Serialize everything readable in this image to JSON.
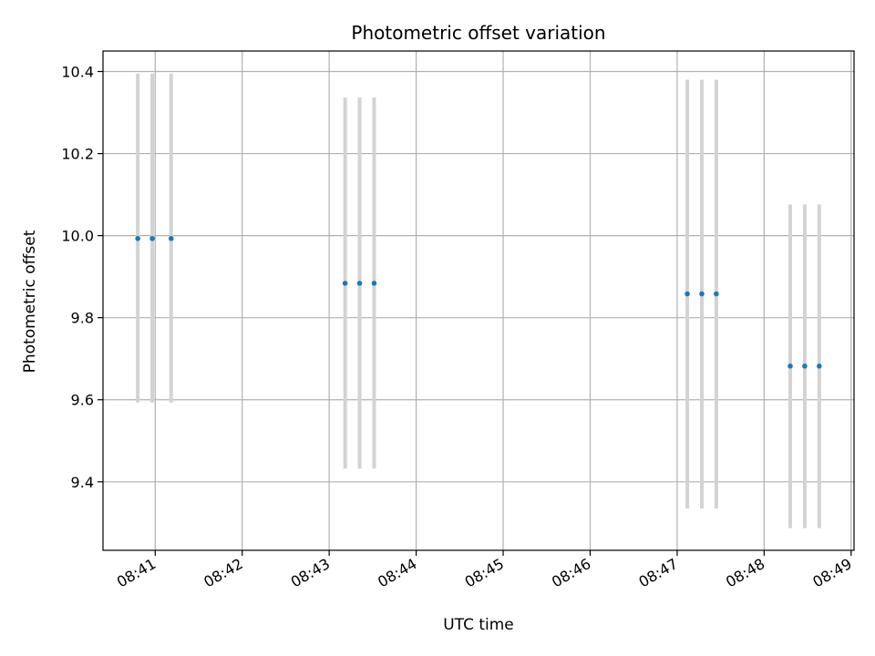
{
  "chart_data": {
    "type": "scatter",
    "title": "Photometric offset variation",
    "xlabel": "UTC time",
    "ylabel": "Photometric offset",
    "x_tick_labels": [
      "08:41",
      "08:42",
      "08:43",
      "08:44",
      "08:45",
      "08:46",
      "08:47",
      "08:48",
      "08:49"
    ],
    "y_tick_labels": [
      "9.4",
      "9.6",
      "9.8",
      "10.0",
      "10.2",
      "10.4"
    ],
    "x_ticks": [
      "08:41",
      "08:42",
      "08:43",
      "08:44",
      "08:45",
      "08:46",
      "08:47",
      "08:48",
      "08:49"
    ],
    "y_ticks": [
      9.4,
      9.6,
      9.8,
      10.0,
      10.2,
      10.4
    ],
    "xlim": [
      "08:40:24",
      "08:49:02"
    ],
    "ylim": [
      9.233,
      10.45
    ],
    "grid": true,
    "series": [
      {
        "x": [
          "08:40:48",
          "08:40:58",
          "08:41:11",
          "08:43:11",
          "08:43:21",
          "08:43:31",
          "08:47:07",
          "08:47:17",
          "08:47:27",
          "08:48:18",
          "08:48:28",
          "08:48:38"
        ],
        "y": [
          9.993,
          9.993,
          9.993,
          9.884,
          9.884,
          9.884,
          9.858,
          9.858,
          9.858,
          9.682,
          9.682,
          9.682
        ],
        "error_low": [
          9.593,
          9.593,
          9.593,
          9.432,
          9.432,
          9.432,
          9.335,
          9.335,
          9.335,
          9.287,
          9.287,
          9.287
        ],
        "error_high": [
          10.395,
          10.395,
          10.395,
          10.337,
          10.337,
          10.337,
          10.38,
          10.38,
          10.38,
          10.076,
          10.076,
          10.076
        ]
      }
    ],
    "colors": {
      "points": "#1f77b4",
      "error_bars": "#d3d3d3",
      "grid": "#b0b0b0"
    }
  }
}
